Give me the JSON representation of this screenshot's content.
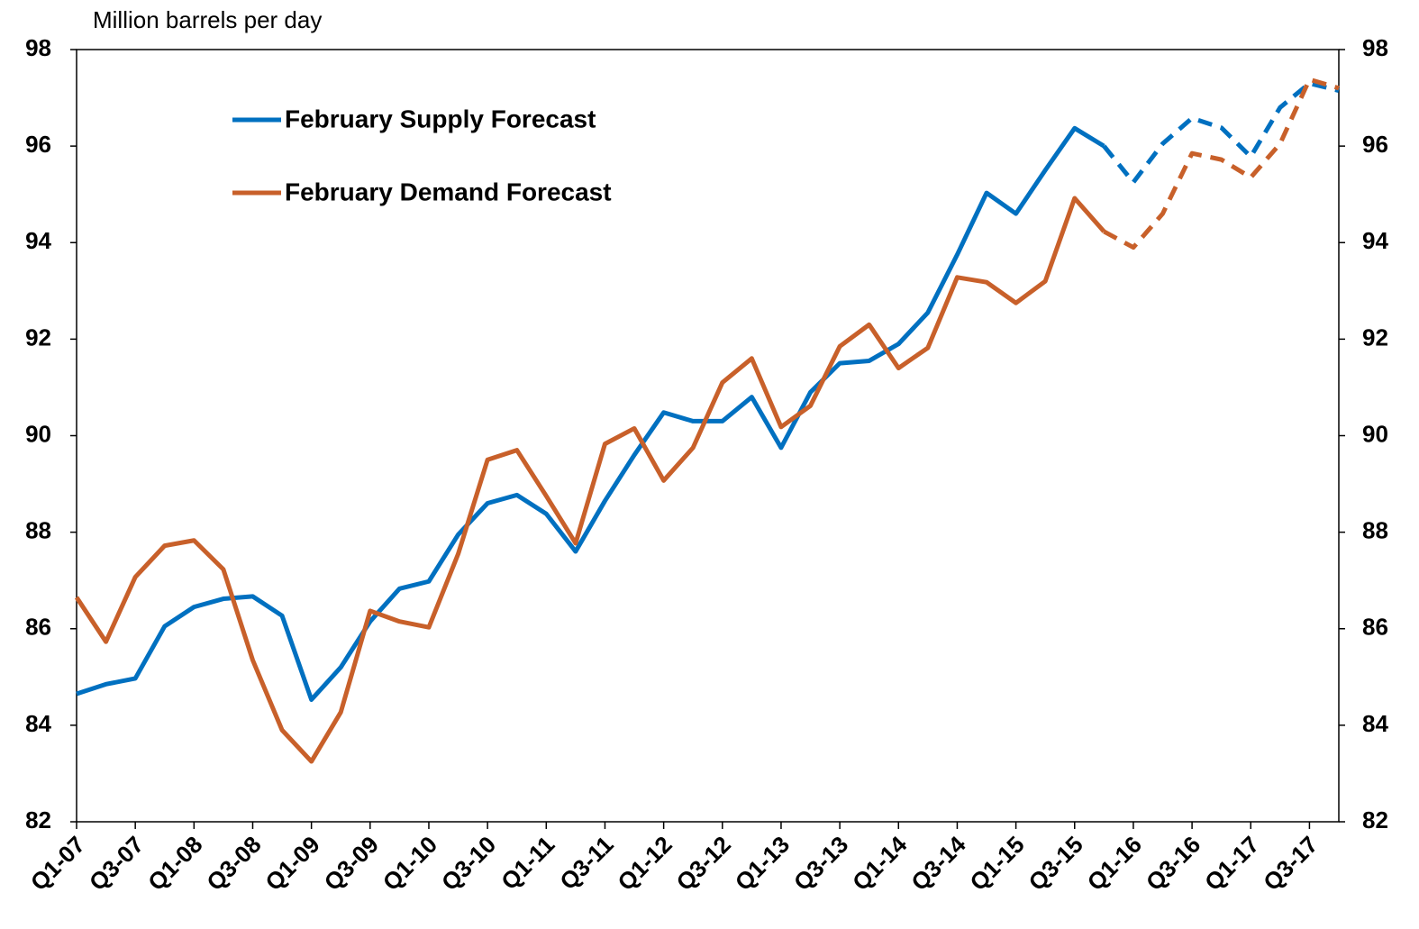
{
  "chart_data": {
    "type": "line",
    "y_axis_title": "Million barrels per day",
    "categories": [
      "Q1-07",
      null,
      "Q3-07",
      null,
      "Q1-08",
      null,
      "Q3-08",
      null,
      "Q1-09",
      null,
      "Q3-09",
      null,
      "Q1-10",
      null,
      "Q3-10",
      null,
      "Q1-11",
      null,
      "Q3-11",
      null,
      "Q1-12",
      null,
      "Q3-12",
      null,
      "Q1-13",
      null,
      "Q3-13",
      null,
      "Q1-14",
      null,
      "Q3-14",
      null,
      "Q1-15",
      null,
      "Q3-15",
      null,
      "Q1-16",
      null,
      "Q3-16",
      null,
      "Q1-17",
      null,
      "Q3-17",
      null
    ],
    "series": [
      {
        "name": "February Supply Forecast",
        "color": "#0070c0",
        "values": [
          84.65,
          84.85,
          84.97,
          86.05,
          86.45,
          86.62,
          86.67,
          86.27,
          84.53,
          85.2,
          86.15,
          86.83,
          86.98,
          87.95,
          88.6,
          88.77,
          88.38,
          87.6,
          88.65,
          89.6,
          90.48,
          90.3,
          90.3,
          90.8,
          89.75,
          90.9,
          91.5,
          91.55,
          91.9,
          92.55,
          93.75,
          95.03,
          94.6,
          95.5,
          96.37,
          96.0,
          95.25,
          96.05,
          96.58,
          96.38,
          95.78,
          96.8,
          97.3,
          97.15
        ]
      },
      {
        "name": "February Demand Forecast",
        "color": "#c8602a",
        "values": [
          86.65,
          85.73,
          87.07,
          87.72,
          87.83,
          87.23,
          85.35,
          83.9,
          83.25,
          84.27,
          86.37,
          86.15,
          86.03,
          87.55,
          89.5,
          89.7,
          88.75,
          87.77,
          89.83,
          90.15,
          89.07,
          89.75,
          91.1,
          91.6,
          90.18,
          90.62,
          91.85,
          92.3,
          91.4,
          91.82,
          93.28,
          93.18,
          92.75,
          93.2,
          94.92,
          94.23,
          93.9,
          94.6,
          95.85,
          95.72,
          95.35,
          96.05,
          97.38,
          97.2
        ]
      }
    ],
    "dashed_from_index": 35,
    "ylim": [
      82,
      98
    ],
    "yticks": [
      82,
      84,
      86,
      88,
      90,
      92,
      94,
      96,
      98
    ],
    "y2lim": [
      82,
      98
    ],
    "y2ticks": [
      82,
      84,
      86,
      88,
      90,
      92,
      94,
      96,
      98
    ],
    "grid": false
  }
}
